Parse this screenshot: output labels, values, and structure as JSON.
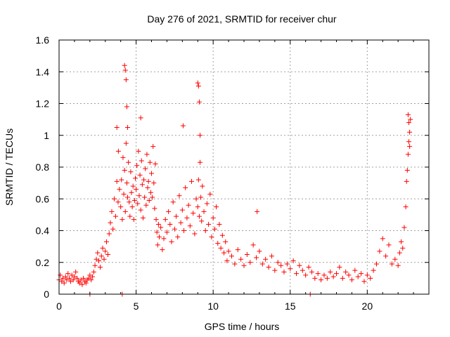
{
  "chart_data": {
    "type": "scatter",
    "title": "Day 276 of 2021, SRMTID for receiver chur",
    "xlabel": "GPS time / hours",
    "ylabel": "SRMTID / TECUs",
    "xlim": [
      0,
      24
    ],
    "ylim": [
      0,
      1.6
    ],
    "xticks": [
      0,
      5,
      10,
      15,
      20
    ],
    "yticks": [
      0,
      0.2,
      0.4,
      0.6,
      0.8,
      1,
      1.2,
      1.4,
      1.6
    ],
    "xtick_labels": [
      "0",
      "5",
      "10",
      "15",
      "20"
    ],
    "ytick_labels": [
      "0",
      "0.2",
      "0.4",
      "0.6",
      "0.8",
      "1",
      "1.2",
      "1.4",
      "1.6"
    ],
    "grid": true,
    "marker": "+",
    "color": "#ff0000",
    "series": [
      {
        "name": "chur",
        "x": [
          0.0,
          0.08,
          0.17,
          0.25,
          0.33,
          0.42,
          0.5,
          0.58,
          0.67,
          0.75,
          0.83,
          0.92,
          1.0,
          1.08,
          1.17,
          1.25,
          1.33,
          1.42,
          1.5,
          1.58,
          1.67,
          1.75,
          1.83,
          1.92,
          2.0,
          2.08,
          2.17,
          2.25,
          2.33,
          2.42,
          2.5,
          2.58,
          2.67,
          2.75,
          2.83,
          2.92,
          3.0,
          3.08,
          3.17,
          3.25,
          3.33,
          3.42,
          3.5,
          3.58,
          3.67,
          3.75,
          3.83,
          3.92,
          4.0,
          4.05,
          4.1,
          4.15,
          4.2,
          4.25,
          4.3,
          4.35,
          4.4,
          4.45,
          4.5,
          4.55,
          4.6,
          4.65,
          4.7,
          4.75,
          4.8,
          4.85,
          4.9,
          4.95,
          5.0,
          5.05,
          5.1,
          5.15,
          5.2,
          5.25,
          5.3,
          5.35,
          5.4,
          5.45,
          5.5,
          5.55,
          5.6,
          5.65,
          5.7,
          5.75,
          5.8,
          5.85,
          5.9,
          5.95,
          6.0,
          6.05,
          6.1,
          6.15,
          6.2,
          6.25,
          6.3,
          6.35,
          6.4,
          6.45,
          6.5,
          6.6,
          6.7,
          6.8,
          6.9,
          7.0,
          7.1,
          7.2,
          7.3,
          7.4,
          7.5,
          7.6,
          7.7,
          7.8,
          7.9,
          8.0,
          8.1,
          8.2,
          8.3,
          8.4,
          8.5,
          8.6,
          8.7,
          8.8,
          8.9,
          9.0,
          9.05,
          9.1,
          9.15,
          9.2,
          9.25,
          9.3,
          9.4,
          9.5,
          9.6,
          9.7,
          9.8,
          9.9,
          10.0,
          10.1,
          10.2,
          10.3,
          10.4,
          10.5,
          10.6,
          10.7,
          10.8,
          10.9,
          11.0,
          11.2,
          11.4,
          11.6,
          11.8,
          12.0,
          12.2,
          12.4,
          12.6,
          12.8,
          13.0,
          13.2,
          13.4,
          13.6,
          13.8,
          14.0,
          14.2,
          14.4,
          14.6,
          14.8,
          15.0,
          15.2,
          15.4,
          15.6,
          15.8,
          16.0,
          16.2,
          16.4,
          16.6,
          16.8,
          17.0,
          17.2,
          17.4,
          17.6,
          17.8,
          18.0,
          18.2,
          18.4,
          18.6,
          18.8,
          19.0,
          19.2,
          19.4,
          19.6,
          19.8,
          20.0,
          20.2,
          20.4,
          20.6,
          20.8,
          21.0,
          21.2,
          21.4,
          21.6,
          21.8,
          22.0,
          22.1,
          22.2,
          22.3,
          22.4,
          22.5,
          22.55,
          22.6,
          22.65,
          22.7,
          22.75,
          22.8,
          4.25,
          4.3,
          4.35,
          4.4,
          4.45,
          3.75,
          3.85,
          9.0,
          9.05,
          9.1,
          9.15,
          5.3,
          8.05,
          12.85,
          2.0,
          4.1,
          16.3,
          22.65,
          22.7,
          22.75
        ],
        "y": [
          0.09,
          0.12,
          0.08,
          0.1,
          0.07,
          0.11,
          0.09,
          0.13,
          0.1,
          0.08,
          0.12,
          0.09,
          0.11,
          0.14,
          0.1,
          0.08,
          0.07,
          0.09,
          0.06,
          0.1,
          0.08,
          0.07,
          0.09,
          0.1,
          0.12,
          0.09,
          0.11,
          0.14,
          0.18,
          0.22,
          0.26,
          0.21,
          0.17,
          0.24,
          0.29,
          0.22,
          0.27,
          0.33,
          0.25,
          0.38,
          0.45,
          0.52,
          0.41,
          0.6,
          0.49,
          0.71,
          0.58,
          0.66,
          0.55,
          0.72,
          0.47,
          0.86,
          0.63,
          0.78,
          0.52,
          0.95,
          0.7,
          0.61,
          0.83,
          0.58,
          0.49,
          0.77,
          0.64,
          0.55,
          0.68,
          0.47,
          0.59,
          0.73,
          0.66,
          0.81,
          0.57,
          0.9,
          0.62,
          0.75,
          0.53,
          0.84,
          0.69,
          0.48,
          0.72,
          0.61,
          0.79,
          0.56,
          0.88,
          0.67,
          0.71,
          0.59,
          0.83,
          0.64,
          0.76,
          0.61,
          0.93,
          0.7,
          0.54,
          0.82,
          0.47,
          0.39,
          0.31,
          0.44,
          0.36,
          0.42,
          0.28,
          0.35,
          0.47,
          0.39,
          0.52,
          0.44,
          0.33,
          0.58,
          0.41,
          0.49,
          0.36,
          0.62,
          0.45,
          0.53,
          0.4,
          0.67,
          0.48,
          0.56,
          0.43,
          0.71,
          0.51,
          0.38,
          0.6,
          0.55,
          0.72,
          0.49,
          0.83,
          0.61,
          0.46,
          0.68,
          0.52,
          0.4,
          0.57,
          0.44,
          0.63,
          0.36,
          0.48,
          0.41,
          0.55,
          0.32,
          0.44,
          0.29,
          0.37,
          0.26,
          0.33,
          0.21,
          0.27,
          0.24,
          0.19,
          0.28,
          0.22,
          0.18,
          0.25,
          0.2,
          0.31,
          0.23,
          0.27,
          0.19,
          0.22,
          0.17,
          0.24,
          0.15,
          0.2,
          0.18,
          0.14,
          0.19,
          0.16,
          0.21,
          0.13,
          0.18,
          0.15,
          0.12,
          0.17,
          0.14,
          0.1,
          0.13,
          0.09,
          0.12,
          0.1,
          0.14,
          0.11,
          0.13,
          0.17,
          0.1,
          0.14,
          0.12,
          0.09,
          0.15,
          0.11,
          0.13,
          0.08,
          0.12,
          0.1,
          0.15,
          0.19,
          0.27,
          0.35,
          0.24,
          0.31,
          0.19,
          0.22,
          0.18,
          0.26,
          0.33,
          0.29,
          0.42,
          0.55,
          0.71,
          0.78,
          0.88,
          0.96,
          1.02,
          1.1,
          1.44,
          1.41,
          1.35,
          1.18,
          1.05,
          1.05,
          0.9,
          1.33,
          1.31,
          1.21,
          1.0,
          1.11,
          1.06,
          0.52,
          0.0,
          0.0,
          0.0,
          1.13,
          1.08,
          0.93
        ]
      }
    ]
  }
}
